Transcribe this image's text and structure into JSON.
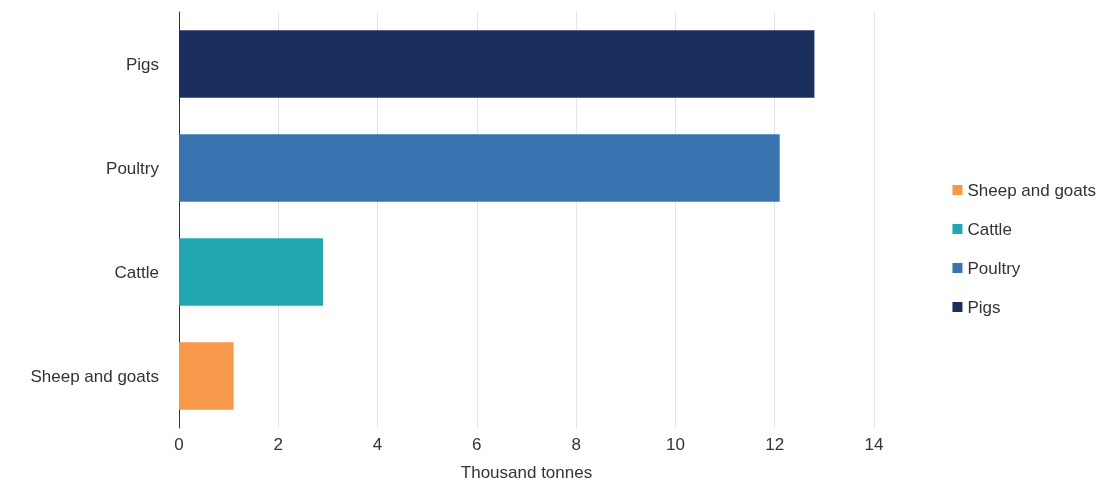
{
  "chart_data": {
    "type": "bar",
    "orientation": "horizontal",
    "xlabel": "Thousand tonnes",
    "categories": [
      "Pigs",
      "Poultry",
      "Cattle",
      "Sheep and goats"
    ],
    "series": [
      {
        "name": "Sheep and goats",
        "color": "#f7984a",
        "values": [
          null,
          null,
          null,
          1.1
        ]
      },
      {
        "name": "Cattle",
        "color": "#22a7b0",
        "values": [
          null,
          null,
          2.9,
          null
        ]
      },
      {
        "name": "Poultry",
        "color": "#3873b0",
        "values": [
          null,
          12.1,
          null,
          null
        ]
      },
      {
        "name": "Pigs",
        "color": "#1b2f5e",
        "values": [
          12.8,
          null,
          null,
          null
        ]
      }
    ],
    "xlim": [
      0,
      14
    ],
    "xticks": [
      0,
      2,
      4,
      6,
      8,
      10,
      12,
      14
    ],
    "grid": "x",
    "legend": "right"
  }
}
